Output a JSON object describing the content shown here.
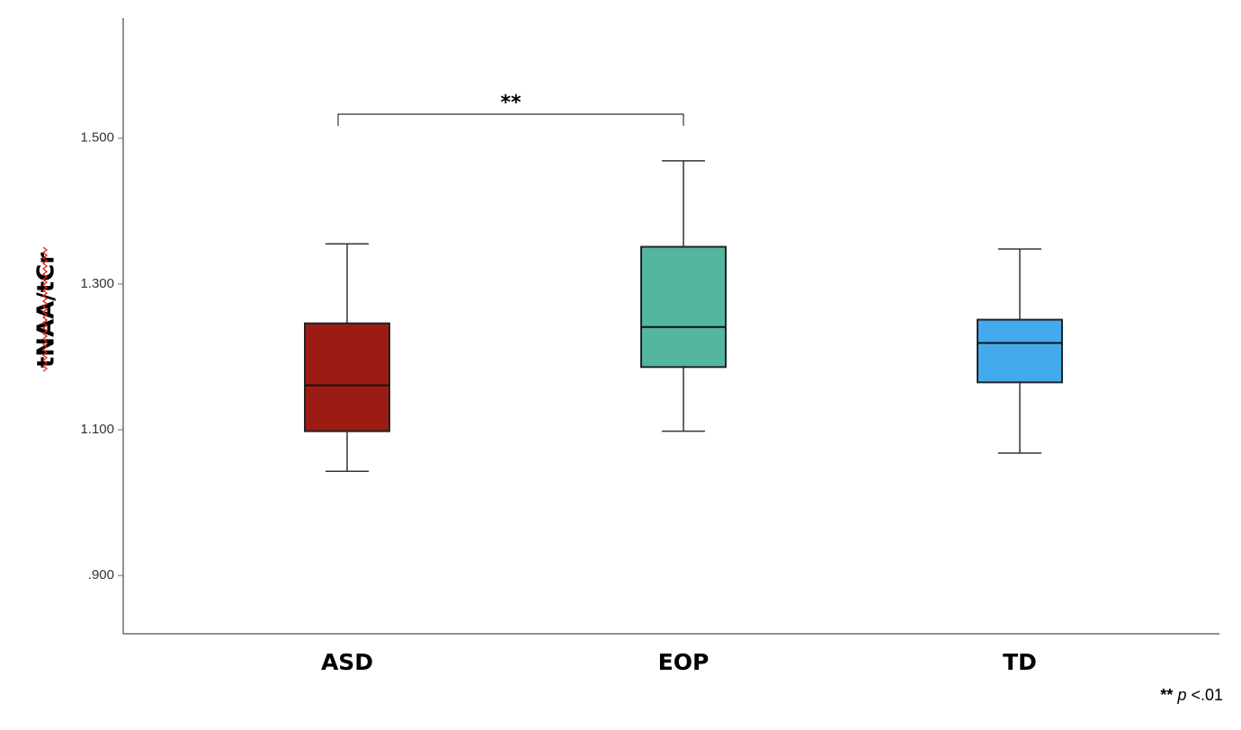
{
  "chart_data": {
    "type": "box",
    "ylabel": "tNAA/tCr",
    "ylim": [
      0.82,
      1.665
    ],
    "yticks": [
      0.9,
      1.1,
      1.3,
      1.5
    ],
    "ytick_labels": [
      ".900",
      "1.100",
      "1.300",
      "1.500"
    ],
    "categories": [
      "ASD",
      "EOP",
      "TD"
    ],
    "boxes": [
      {
        "category": "ASD",
        "whisker_low": 1.043,
        "q1": 1.098,
        "median": 1.161,
        "q3": 1.246,
        "whisker_high": 1.355,
        "color": "#9b1c13"
      },
      {
        "category": "EOP",
        "whisker_low": 1.098,
        "q1": 1.186,
        "median": 1.241,
        "q3": 1.351,
        "whisker_high": 1.469,
        "color": "#52b6a0"
      },
      {
        "category": "TD",
        "whisker_low": 1.068,
        "q1": 1.165,
        "median": 1.219,
        "q3": 1.251,
        "whisker_high": 1.348,
        "color": "#44aaee"
      }
    ],
    "significance": {
      "from": "ASD",
      "to": "EOP",
      "label": "**"
    },
    "grid": false
  },
  "footnote": {
    "stars": "**",
    "p": "p",
    "text": " <.01"
  }
}
